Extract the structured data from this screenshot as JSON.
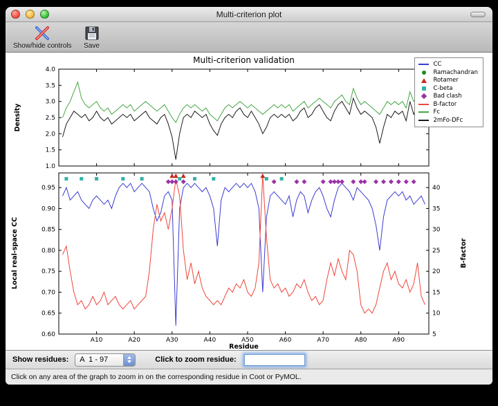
{
  "window": {
    "title": "Multi-criterion plot"
  },
  "toolbar": {
    "items": [
      {
        "label": "Show/hide controls",
        "icon": "tools-icon"
      },
      {
        "label": "Save",
        "icon": "save-icon"
      }
    ]
  },
  "figure": {
    "legend": [
      {
        "label": "CC",
        "type": "line",
        "color": "#3a3ad1"
      },
      {
        "label": "Ramachandran",
        "type": "circle",
        "color": "#1e8c1e"
      },
      {
        "label": "Rotamer",
        "type": "triangle",
        "color": "#c62b1e"
      },
      {
        "label": "C-beta",
        "type": "square",
        "color": "#33b3a6"
      },
      {
        "label": "Bad clash",
        "type": "diamond",
        "color": "#9b32a8"
      },
      {
        "label": "B-factor",
        "type": "line",
        "color": "#ef4438"
      },
      {
        "label": "Fc",
        "type": "line",
        "color": "#46a546"
      },
      {
        "label": "2mFo-DFc",
        "type": "line",
        "color": "#1a1a1a"
      }
    ]
  },
  "chart_data": [
    {
      "type": "line",
      "title": "Multi-criterion validation",
      "ylabel": "Density",
      "ylim": [
        1.0,
        4.0
      ],
      "x_range": [
        0,
        98
      ],
      "x_start": 1,
      "yticks": [
        [
          1.0,
          "1.0"
        ],
        [
          1.5,
          "1.5"
        ],
        [
          2.0,
          "2.0"
        ],
        [
          2.5,
          "2.5"
        ],
        [
          3.0,
          "3.0"
        ],
        [
          3.5,
          "3.5"
        ],
        [
          4.0,
          "4.0"
        ]
      ],
      "series": [
        {
          "name": "Fc",
          "color": "#46a546",
          "values": [
            2.5,
            2.8,
            3.0,
            3.3,
            3.6,
            3.1,
            2.9,
            2.8,
            2.9,
            3.0,
            2.8,
            2.7,
            2.8,
            2.6,
            2.7,
            2.8,
            2.9,
            2.8,
            2.9,
            2.7,
            2.8,
            2.9,
            3.0,
            2.9,
            2.8,
            2.7,
            2.8,
            2.9,
            2.7,
            2.5,
            2.35,
            2.6,
            2.8,
            2.9,
            2.8,
            2.9,
            2.8,
            2.7,
            2.8,
            2.6,
            2.5,
            2.4,
            2.6,
            2.8,
            2.9,
            2.8,
            2.9,
            3.0,
            2.9,
            2.8,
            2.9,
            2.8,
            2.7,
            2.6,
            2.7,
            2.8,
            2.9,
            2.8,
            2.9,
            2.8,
            2.9,
            2.7,
            2.8,
            2.9,
            3.0,
            2.8,
            2.9,
            3.0,
            3.1,
            3.0,
            2.9,
            2.8,
            3.0,
            3.1,
            3.2,
            3.0,
            2.9,
            3.4,
            3.1,
            2.9,
            3.0,
            2.9,
            2.8,
            2.7,
            2.6,
            2.8,
            3.0,
            2.9,
            3.0,
            2.9,
            3.0,
            2.8,
            3.3,
            3.0,
            3.2,
            2.9,
            3.0
          ]
        },
        {
          "name": "2mFo-DFc",
          "color": "#1a1a1a",
          "values": [
            1.9,
            2.3,
            2.5,
            2.7,
            2.6,
            2.5,
            2.6,
            2.4,
            2.5,
            2.7,
            2.5,
            2.4,
            2.5,
            2.3,
            2.4,
            2.5,
            2.6,
            2.5,
            2.6,
            2.4,
            2.5,
            2.6,
            2.7,
            2.5,
            2.4,
            2.3,
            2.5,
            2.6,
            2.3,
            1.9,
            1.2,
            2.0,
            2.5,
            2.6,
            2.5,
            2.7,
            2.6,
            2.5,
            2.6,
            2.3,
            2.1,
            1.95,
            2.3,
            2.5,
            2.6,
            2.5,
            2.7,
            2.8,
            2.6,
            2.5,
            2.7,
            2.5,
            2.3,
            2.0,
            2.2,
            2.5,
            2.6,
            2.5,
            2.6,
            2.5,
            2.6,
            2.4,
            2.5,
            2.7,
            2.8,
            2.5,
            2.6,
            2.8,
            2.9,
            2.7,
            2.5,
            2.4,
            2.7,
            2.9,
            3.0,
            2.8,
            2.6,
            3.1,
            2.8,
            2.6,
            2.7,
            2.6,
            2.5,
            2.2,
            1.7,
            2.2,
            2.6,
            2.5,
            2.7,
            2.6,
            2.7,
            2.4,
            3.0,
            2.6,
            2.9,
            2.3,
            2.2
          ]
        }
      ]
    },
    {
      "type": "line+scatter",
      "xlabel": "Residue",
      "ylabel": "Local real-space CC",
      "y2label": "B-factor",
      "ylim": [
        0.6,
        0.985
      ],
      "y2lim": [
        5,
        43.5
      ],
      "x_range": [
        0,
        98
      ],
      "x_start": 1,
      "yticks": [
        [
          0.6,
          "0.60"
        ],
        [
          0.65,
          "0.65"
        ],
        [
          0.7,
          "0.70"
        ],
        [
          0.75,
          "0.75"
        ],
        [
          0.8,
          "0.80"
        ],
        [
          0.85,
          "0.85"
        ],
        [
          0.9,
          "0.90"
        ],
        [
          0.95,
          "0.95"
        ]
      ],
      "y2ticks": [
        [
          5,
          "5"
        ],
        [
          10,
          "10"
        ],
        [
          15,
          "15"
        ],
        [
          20,
          "20"
        ],
        [
          25,
          "25"
        ],
        [
          30,
          "30"
        ],
        [
          35,
          "35"
        ],
        [
          40,
          "40"
        ]
      ],
      "xticks": [
        [
          10,
          "A10"
        ],
        [
          20,
          "A20"
        ],
        [
          30,
          "A30"
        ],
        [
          40,
          "A40"
        ],
        [
          50,
          "A50"
        ],
        [
          60,
          "A60"
        ],
        [
          70,
          "A70"
        ],
        [
          80,
          "A80"
        ],
        [
          90,
          "A90"
        ]
      ],
      "series": [
        {
          "name": "CC",
          "axis": "left",
          "color": "#3a3ad1",
          "values": [
            0.93,
            0.95,
            0.92,
            0.93,
            0.94,
            0.92,
            0.91,
            0.9,
            0.92,
            0.93,
            0.92,
            0.91,
            0.92,
            0.9,
            0.93,
            0.95,
            0.96,
            0.95,
            0.96,
            0.94,
            0.95,
            0.96,
            0.95,
            0.94,
            0.9,
            0.87,
            0.89,
            0.93,
            0.94,
            0.92,
            0.62,
            0.9,
            0.95,
            0.96,
            0.95,
            0.96,
            0.95,
            0.94,
            0.95,
            0.93,
            0.9,
            0.81,
            0.92,
            0.95,
            0.94,
            0.95,
            0.96,
            0.95,
            0.96,
            0.95,
            0.96,
            0.94,
            0.9,
            0.7,
            0.88,
            0.93,
            0.94,
            0.93,
            0.92,
            0.91,
            0.93,
            0.88,
            0.92,
            0.94,
            0.93,
            0.89,
            0.92,
            0.94,
            0.95,
            0.93,
            0.9,
            0.88,
            0.92,
            0.95,
            0.96,
            0.95,
            0.94,
            0.92,
            0.95,
            0.94,
            0.93,
            0.92,
            0.9,
            0.86,
            0.8,
            0.88,
            0.92,
            0.93,
            0.94,
            0.93,
            0.94,
            0.92,
            0.93,
            0.91,
            0.92,
            0.93,
            0.91
          ]
        },
        {
          "name": "B-factor",
          "axis": "right",
          "color": "#ef4438",
          "values": [
            24,
            26,
            20,
            15,
            12,
            13,
            11,
            12,
            14,
            12,
            13,
            15,
            12,
            13,
            14,
            12,
            11,
            12,
            13,
            11,
            12,
            13,
            14,
            20,
            30,
            36,
            32,
            34,
            30,
            35,
            42,
            38,
            25,
            18,
            22,
            17,
            20,
            16,
            14,
            13,
            12,
            13,
            12,
            14,
            16,
            15,
            17,
            16,
            18,
            15,
            14,
            16,
            22,
            43,
            28,
            18,
            16,
            17,
            15,
            16,
            14,
            15,
            17,
            16,
            18,
            15,
            13,
            14,
            12,
            13,
            18,
            22,
            19,
            23,
            20,
            18,
            25,
            24,
            20,
            12,
            10,
            11,
            10,
            12,
            16,
            20,
            22,
            18,
            20,
            17,
            16,
            18,
            15,
            17,
            22,
            14,
            12
          ]
        }
      ],
      "markers": [
        {
          "name": "Rotamer",
          "shape": "triangle",
          "color": "#c62b1e",
          "y": 0.978,
          "x": [
            30,
            31,
            33,
            54
          ]
        },
        {
          "name": "C-beta",
          "shape": "square",
          "color": "#33b3a6",
          "y": 0.971,
          "x": [
            2,
            6,
            10,
            17,
            22,
            32,
            36,
            41,
            55,
            59
          ]
        },
        {
          "name": "Bad clash",
          "shape": "diamond",
          "color": "#9b32a8",
          "y": 0.964,
          "x": [
            29,
            30,
            31,
            33,
            57,
            63,
            65,
            70,
            72,
            73,
            74,
            75,
            78,
            80,
            81,
            84,
            86,
            88,
            90,
            92,
            94
          ]
        }
      ]
    }
  ],
  "controls": {
    "show_residues_label": "Show residues:",
    "residue_range": "A  1 - 97",
    "zoom_label": "Click to zoom residue:",
    "zoom_value": ""
  },
  "status": {
    "text": "Click on any area of the graph to zoom in on the corresponding residue in Coot or PyMOL."
  }
}
